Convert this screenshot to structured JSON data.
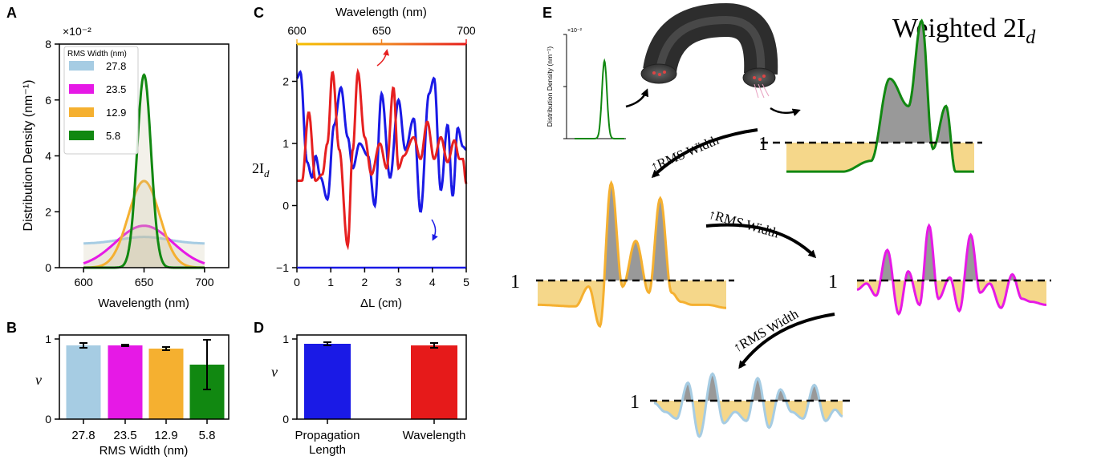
{
  "panel_labels": {
    "a": "A",
    "b": "B",
    "c": "C",
    "d": "D",
    "e": "E"
  },
  "chart_data": [
    {
      "panel": "A",
      "type": "line",
      "ylabel": "Distribution Density (nm⁻¹)",
      "xlabel": "Wavelength (nm)",
      "scale_label": "×10⁻²",
      "xlim": [
        580,
        720
      ],
      "ylim": [
        0,
        8
      ],
      "xticks": [
        "600",
        "650",
        "700"
      ],
      "yticks": [
        "0",
        "2",
        "4",
        "6",
        "8"
      ],
      "fill_under": true,
      "legend": {
        "title": "RMS Width (nm)",
        "position": "top-left"
      },
      "series": [
        {
          "name": "27.8",
          "color": "#a6cce3",
          "shape": "flat",
          "amp": 1.1,
          "center": 650,
          "sigma": 27.8,
          "range": [
            600,
            700
          ]
        },
        {
          "name": "23.5",
          "color": "#e619e6",
          "shape": "gauss",
          "amp": 1.5,
          "center": 650,
          "sigma": 23.5,
          "range": [
            600,
            700
          ]
        },
        {
          "name": "12.9",
          "color": "#f5b030",
          "shape": "gauss",
          "amp": 3.1,
          "center": 650,
          "sigma": 12.9,
          "range": [
            600,
            700
          ]
        },
        {
          "name": "5.8",
          "color": "#118811",
          "shape": "gauss",
          "amp": 6.9,
          "center": 650,
          "sigma": 5.8,
          "range": [
            600,
            700
          ]
        }
      ]
    },
    {
      "panel": "B",
      "type": "bar",
      "ylabel": "ν",
      "xlabel": "RMS Width (nm)",
      "categories": [
        "27.8",
        "23.5",
        "12.9",
        "5.8"
      ],
      "values": [
        0.92,
        0.92,
        0.88,
        0.68
      ],
      "errors": [
        0.03,
        0.01,
        0.02,
        0.31
      ],
      "colors": [
        "#a6cce3",
        "#e619e6",
        "#f5b030",
        "#118811"
      ],
      "ylim": [
        0,
        1.05
      ],
      "yticks": [
        "0",
        "1"
      ]
    },
    {
      "panel": "C",
      "type": "line",
      "ylabel": "2I",
      "ylabel_sub": "d",
      "xlabel": "ΔL (cm)",
      "xlabel_top": "Wavelength (nm)",
      "xlim": [
        0,
        5
      ],
      "ylim": [
        -1,
        2.6
      ],
      "xticks": [
        "0",
        "1",
        "2",
        "3",
        "4",
        "5"
      ],
      "yticks": [
        "−1",
        "0",
        "1",
        "2"
      ],
      "xticks_top": [
        "600",
        "650",
        "700"
      ],
      "series": [
        {
          "name": "",
          "color": "#1a1ae6",
          "x": [
            0,
            0.1,
            0.3,
            0.45,
            0.55,
            0.7,
            0.9,
            1.1,
            1.3,
            1.5,
            1.65,
            1.85,
            2.1,
            2.3,
            2.5,
            2.75,
            3.0,
            3.2,
            3.45,
            3.65,
            3.9,
            4.05,
            4.25,
            4.45,
            4.6,
            4.75,
            4.9,
            5.0
          ],
          "y": [
            2.05,
            2.15,
            0.7,
            0.45,
            0.8,
            0.45,
            0.1,
            1.3,
            1.9,
            1.1,
            0.6,
            1.0,
            0.8,
            0.0,
            1.8,
            0.45,
            1.7,
            0.9,
            1.4,
            -0.1,
            1.8,
            2.05,
            0.25,
            1.3,
            0.15,
            1.25,
            0.95,
            0.9
          ]
        },
        {
          "name": "",
          "color": "#e62020",
          "x": [
            0,
            0.15,
            0.35,
            0.55,
            0.75,
            0.9,
            1.05,
            1.25,
            1.5,
            1.65,
            1.8,
            2.0,
            2.2,
            2.45,
            2.65,
            2.85,
            3.0,
            3.15,
            3.45,
            3.65,
            3.85,
            4.05,
            4.25,
            4.45,
            4.65,
            4.8,
            4.9,
            5.0
          ],
          "y": [
            0.4,
            0.4,
            1.5,
            0.4,
            0.5,
            1.0,
            2.15,
            0.9,
            -0.65,
            0.9,
            2.15,
            1.1,
            0.5,
            1.0,
            0.6,
            1.9,
            0.6,
            0.8,
            1.1,
            0.75,
            1.35,
            0.75,
            1.1,
            0.7,
            1.05,
            0.75,
            0.75,
            0.35
          ]
        }
      ]
    },
    {
      "panel": "D",
      "type": "bar",
      "ylabel": "ν",
      "categories": [
        "Propagation\nLength",
        "Wavelength"
      ],
      "values": [
        0.94,
        0.92
      ],
      "errors": [
        0.02,
        0.03
      ],
      "colors": [
        "#1a1ae6",
        "#e61a1a"
      ],
      "ylim": [
        0,
        1.05
      ],
      "yticks": [
        "0",
        "1"
      ]
    },
    {
      "panel": "E",
      "type": "area",
      "title": "Weighted 2I",
      "title_sub": "d",
      "baseline_label": "1",
      "arrow_label": "RMS Width",
      "inset": {
        "ylabel": "Distribution Density (nm⁻¹)",
        "scale_label": "×10⁻²",
        "color": "#118811"
      },
      "series": [
        {
          "name": "5.8",
          "color": "#118811",
          "x": [
            0,
            0.3,
            0.45,
            0.55,
            0.65,
            0.72,
            0.78,
            0.85,
            0.9,
            0.95,
            1.0
          ],
          "y": [
            -0.95,
            -0.95,
            -0.6,
            2.1,
            1.2,
            4.0,
            -0.2,
            1.2,
            -0.95,
            -0.95,
            -0.95
          ]
        },
        {
          "name": "12.9",
          "color": "#f5b030",
          "x": [
            0,
            0.2,
            0.27,
            0.33,
            0.39,
            0.45,
            0.52,
            0.59,
            0.65,
            0.71,
            0.76,
            0.82,
            0.9,
            1.0
          ],
          "y": [
            -0.8,
            -0.85,
            -0.2,
            -1.5,
            3.2,
            -0.2,
            1.3,
            -0.4,
            2.7,
            -0.4,
            -0.7,
            -0.8,
            -0.8,
            -0.9
          ]
        },
        {
          "name": "23.5",
          "color": "#e619e6",
          "x": [
            0,
            0.05,
            0.1,
            0.16,
            0.22,
            0.27,
            0.33,
            0.38,
            0.43,
            0.49,
            0.54,
            0.6,
            0.65,
            0.7,
            0.76,
            0.82,
            0.87,
            0.92,
            1.0
          ],
          "y": [
            -0.3,
            -0.1,
            -0.5,
            1.0,
            -1.1,
            0.3,
            -0.8,
            1.8,
            -0.6,
            0.1,
            -1.0,
            1.5,
            -0.4,
            -0.1,
            -0.9,
            0.2,
            -0.6,
            -0.7,
            -0.8
          ]
        },
        {
          "name": "27.8",
          "color": "#a6cce3",
          "x": [
            0,
            0.06,
            0.12,
            0.18,
            0.24,
            0.31,
            0.37,
            0.43,
            0.49,
            0.55,
            0.61,
            0.67,
            0.73,
            0.79,
            0.85,
            0.91,
            0.96,
            1.0
          ],
          "y": [
            -0.1,
            -0.5,
            -0.8,
            0.8,
            -1.6,
            1.2,
            -1.0,
            -0.5,
            -0.9,
            1.0,
            -1.2,
            0.5,
            -0.5,
            -0.8,
            0.7,
            -0.9,
            -0.4,
            -0.7
          ]
        }
      ]
    }
  ]
}
